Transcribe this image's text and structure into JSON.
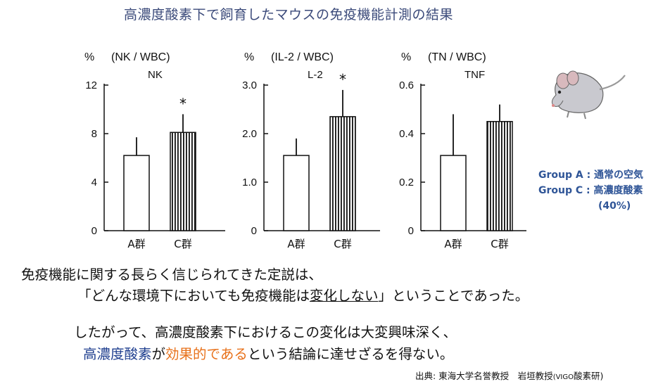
{
  "title": "高濃度酸素下で飼育したマウスの免疫機能計測の結果",
  "chart_data": [
    {
      "type": "bar",
      "unit": "%",
      "title": "(NK / WBC)",
      "subtitle": "NK",
      "categories": [
        "A群",
        "C群"
      ],
      "values": [
        6.2,
        8.1
      ],
      "errors": [
        1.5,
        1.5
      ],
      "significant": [
        false,
        true
      ],
      "yticks": [
        "0",
        "4",
        "8",
        "12"
      ],
      "ylim": [
        0,
        12
      ]
    },
    {
      "type": "bar",
      "unit": "%",
      "title": "(IL-2 / WBC)",
      "subtitle": "L-2",
      "categories": [
        "A群",
        "C群"
      ],
      "values": [
        1.55,
        2.35
      ],
      "errors": [
        0.35,
        0.55
      ],
      "significant": [
        false,
        true
      ],
      "yticks": [
        "0",
        "1.0",
        "2.0",
        "3.0"
      ],
      "ylim": [
        0,
        3.0
      ]
    },
    {
      "type": "bar",
      "unit": "%",
      "title": "(TN / WBC)",
      "subtitle": "TNF",
      "categories": [
        "A群",
        "C群"
      ],
      "values": [
        0.31,
        0.45
      ],
      "errors": [
        0.17,
        0.07
      ],
      "significant": [
        false,
        false
      ],
      "yticks": [
        "0",
        "0.2",
        "0.4",
        "0.6"
      ],
      "ylim": [
        0,
        0.6
      ]
    }
  ],
  "legend": {
    "group_a": "Group A : 通常の空気",
    "group_c": "Group C : 高濃度酸素",
    "group_c_conc": "(40%)"
  },
  "text": {
    "line1": "免疫機能に関する長らく信じられてきた定説は、",
    "line2_pre": "「どんな環境下においても免疫機能は",
    "line2_underline": "変化しない",
    "line2_post": "」ということであった。",
    "line3": "したがって、高濃度酸素下におけるこの変化は大変興味深く、",
    "line4_blue": "高濃度酸素",
    "line4_mid": "が",
    "line4_orange": "効果的である",
    "line4_post": "という結論に達せざるを得ない。"
  },
  "source": {
    "main": "出典: 東海大学名誉教授　岩垣教授",
    "org_prefix": "(VIGO",
    "org_suffix": "酸素研)"
  },
  "colors": {
    "title": "#3b4a7a",
    "legend": "#2f5597",
    "blue_text": "#1f3f8f",
    "orange_text": "#e8711a"
  },
  "icons": {
    "mouse": "mouse-illustration"
  }
}
